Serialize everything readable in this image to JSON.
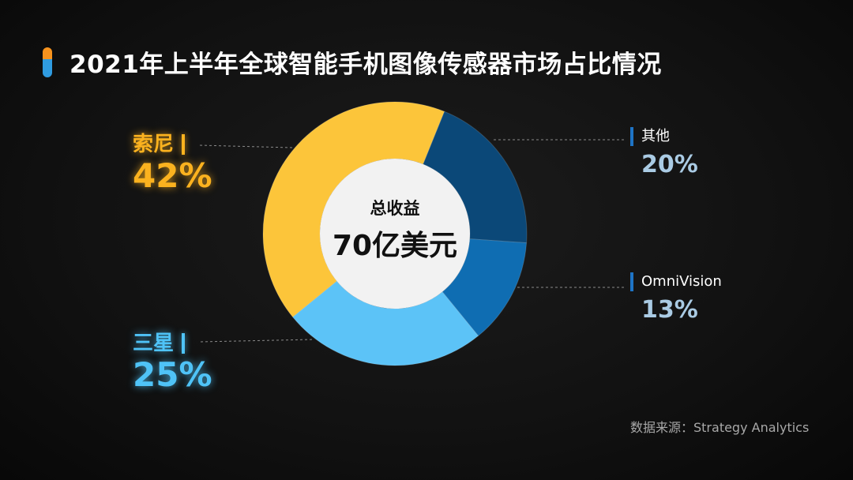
{
  "title": "2021年上半年全球智能手机图像传感器市场占比情况",
  "center": {
    "label": "总收益",
    "value": "70亿美元"
  },
  "source": "数据来源：Strategy Analytics",
  "colors": {
    "sony": "#fcc53a",
    "samsung": "#5cc3f7",
    "omnivision": "#0f6db2",
    "others": "#0b4878",
    "accent_orange": "#f7931e",
    "accent_blue": "#2f9be0"
  },
  "chart_data": {
    "type": "pie",
    "variant": "donut",
    "total_label": "总收益",
    "total_value": "70亿美元",
    "slices": [
      {
        "name": "其他",
        "value": 20,
        "label": "20%",
        "color": "#0b4878"
      },
      {
        "name": "OmniVision",
        "value": 13,
        "label": "13%",
        "color": "#0f6db2"
      },
      {
        "name": "三星",
        "value": 25,
        "label": "25%",
        "color": "#5cc3f7"
      },
      {
        "name": "索尼",
        "value": 42,
        "label": "42%",
        "color": "#fcc53a"
      }
    ]
  }
}
